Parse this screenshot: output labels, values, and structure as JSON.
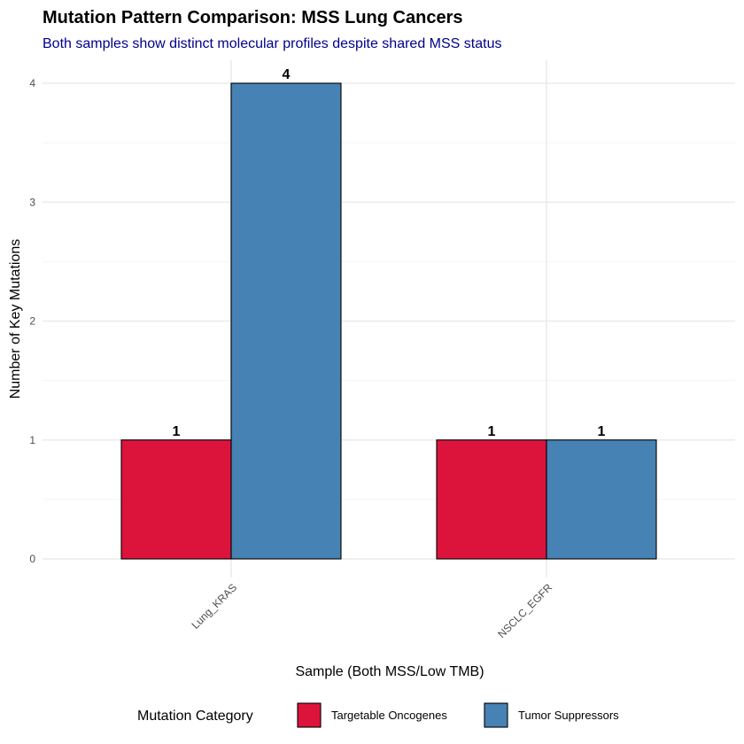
{
  "chart_data": {
    "type": "bar",
    "title": "Mutation Pattern Comparison: MSS Lung Cancers",
    "subtitle": "Both samples show distinct molecular profiles despite shared MSS status",
    "xlabel": "Sample (Both MSS/Low TMB)",
    "ylabel": "Number of Key Mutations",
    "categories": [
      "Lung_KRAS",
      "NSCLC_EGFR"
    ],
    "series": [
      {
        "name": "Targetable Oncogenes",
        "values": [
          1,
          1
        ],
        "color": "#dc143c"
      },
      {
        "name": "Tumor Suppressors",
        "values": [
          4,
          1
        ],
        "color": "#4682b4"
      }
    ],
    "ylim": [
      0,
      4
    ],
    "yticks": [
      0,
      1,
      2,
      3,
      4
    ],
    "legend_title": "Mutation Category",
    "legend_position": "bottom",
    "grid": true
  }
}
